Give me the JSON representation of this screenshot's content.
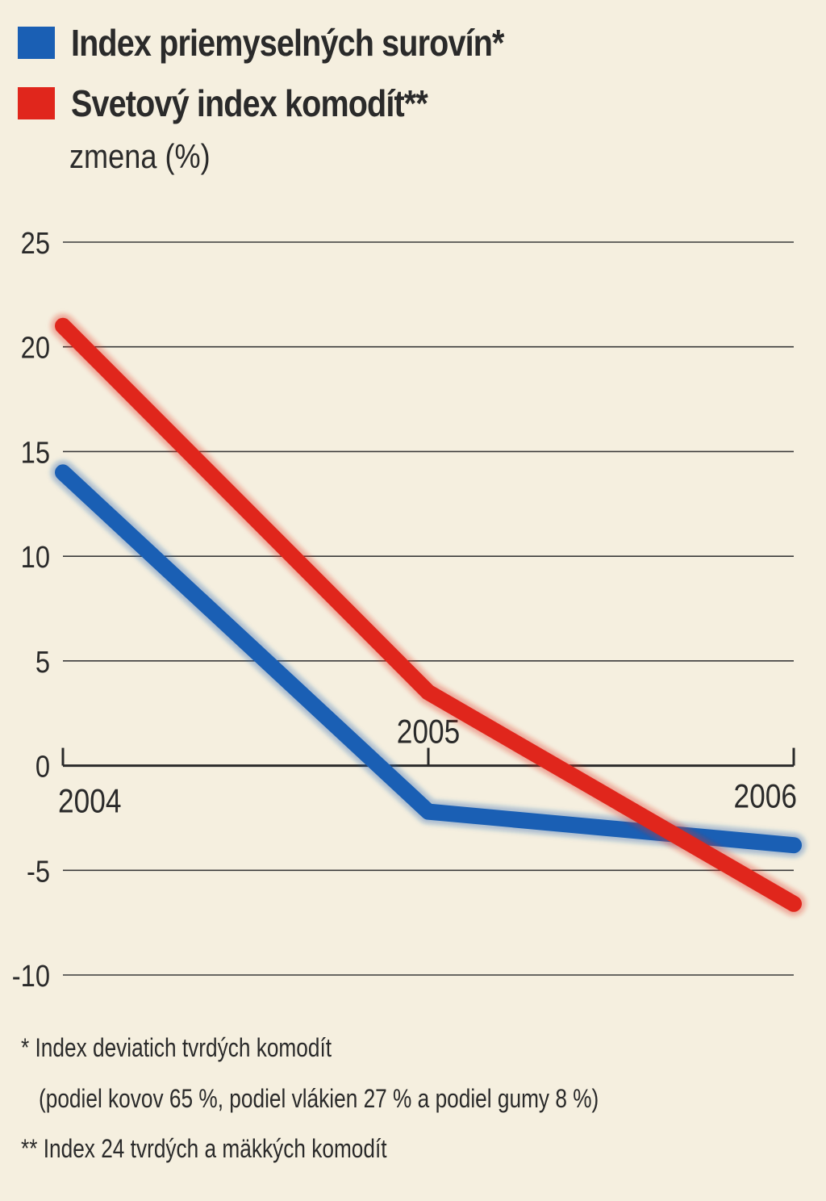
{
  "legend": [
    {
      "label": "Index priemyselných surovín*",
      "color": "#1a5fb4"
    },
    {
      "label": "Svetový index komodít**",
      "color": "#e0261c"
    }
  ],
  "unit_label": "zmena (%)",
  "footnotes": {
    "note1_line1": "* Index deviatich tvrdých komodít",
    "note1_line2": "(podiel kovov 65 %, podiel vlákien 27 % a podiel gumy 8 %)",
    "note2": "** Index 24 tvrdých a mäkkých komodít"
  },
  "chart_data": {
    "type": "line",
    "title": "",
    "xlabel": "",
    "ylabel": "zmena (%)",
    "x": [
      "2004",
      "2005",
      "2006"
    ],
    "ylim": [
      -10,
      25
    ],
    "yticks": [
      25,
      20,
      15,
      10,
      5,
      0,
      -5,
      -10
    ],
    "grid": true,
    "legend_position": "top-left",
    "series": [
      {
        "name": "Index priemyselných surovín*",
        "color": "#1a5fb4",
        "values": [
          14,
          -2.2,
          -3.8
        ]
      },
      {
        "name": "Svetový index komodít**",
        "color": "#e0261c",
        "values": [
          21,
          3.5,
          -6.6
        ]
      }
    ]
  }
}
